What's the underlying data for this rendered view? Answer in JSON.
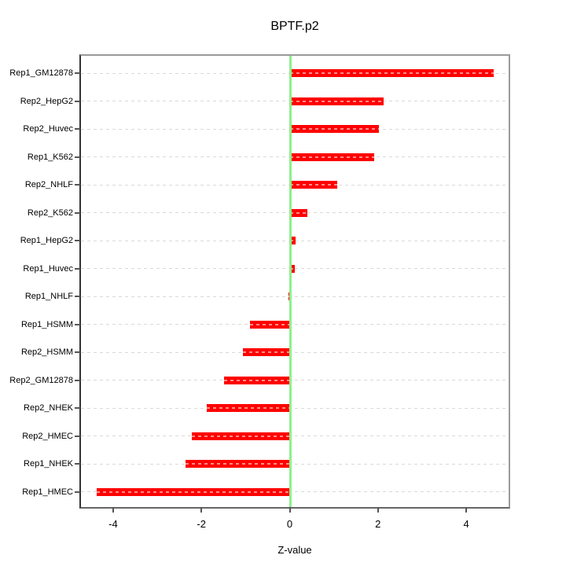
{
  "chart_data": {
    "type": "bar",
    "orientation": "horizontal",
    "title": "BPTF.p2",
    "xlabel": "Z-value",
    "ylabel": "",
    "categories": [
      "Rep1_GM12878",
      "Rep2_HepG2",
      "Rep2_Huvec",
      "Rep1_K562",
      "Rep2_NHLF",
      "Rep2_K562",
      "Rep1_HepG2",
      "Rep1_Huvec",
      "Rep1_NHLF",
      "Rep1_HSMM",
      "Rep2_HSMM",
      "Rep2_GM12878",
      "Rep2_NHEK",
      "Rep2_HMEC",
      "Rep1_NHEK",
      "Rep1_HMEC"
    ],
    "values": [
      4.63,
      2.12,
      2.02,
      1.92,
      1.08,
      0.4,
      0.14,
      0.12,
      -0.03,
      -0.9,
      -1.06,
      -1.48,
      -1.88,
      -2.22,
      -2.36,
      -4.37
    ],
    "xlim": [
      -4.73,
      4.96
    ],
    "x_ticks": [
      -4,
      -2,
      0,
      2,
      4
    ],
    "x_tick_labels": [
      "-4",
      "-2",
      "0",
      "2",
      "4"
    ],
    "grid": "dashed-horizontal",
    "legend": null,
    "colors": {
      "bar": "#ff0000",
      "zero_line": "#8df08d",
      "grid": "#d9d9d9",
      "box": "#8a8a8a",
      "tick": "#555555",
      "text": "#000000",
      "background": "#ffffff"
    }
  }
}
